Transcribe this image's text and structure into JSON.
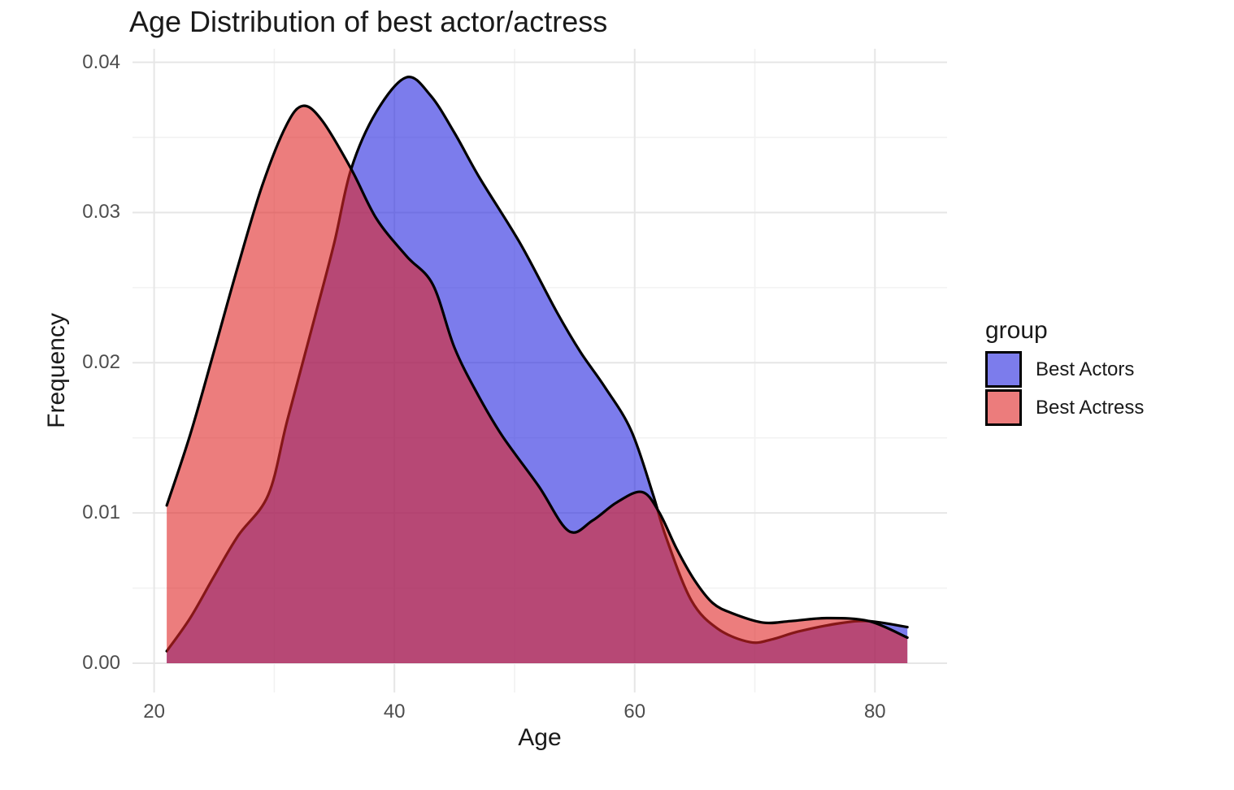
{
  "chart_data": {
    "type": "area",
    "subtype": "density",
    "title": "Age Distribution of best actor/actress",
    "xlabel": "Age",
    "ylabel": "Frequency",
    "xlim": [
      18.2,
      86.0
    ],
    "ylim": [
      -0.00195,
      0.0409
    ],
    "x_ticks": [
      20,
      40,
      60,
      80
    ],
    "x_tick_labels": [
      "20",
      "40",
      "60",
      "80"
    ],
    "x_minor_ticks": [
      30,
      50,
      70
    ],
    "y_ticks": [
      0,
      0.01,
      0.02,
      0.03,
      0.04
    ],
    "y_tick_labels": [
      "0.00",
      "0.01",
      "0.02",
      "0.03",
      "0.04"
    ],
    "y_minor_ticks": [
      0.005,
      0.015,
      0.025,
      0.035
    ],
    "grid": true,
    "legend_title": "group",
    "legend_position": "right",
    "background_color": "#ffffff",
    "major_grid_color": "#e6e6e6",
    "minor_grid_color": "#f2f2f2",
    "outline_color": "#000000",
    "overlap_fill_visible": "#b83d85",
    "series": [
      {
        "name": "Best Actors",
        "base_color": "#2525df",
        "fill_opacity": 0.6,
        "visible_fill": "#7c7cec",
        "stroke": "#000000",
        "points": [
          [
            21.05,
            0.0008
          ],
          [
            23,
            0.003
          ],
          [
            25,
            0.0058
          ],
          [
            27,
            0.0085
          ],
          [
            29.5,
            0.0112
          ],
          [
            31.1,
            0.0162
          ],
          [
            33.4,
            0.0231
          ],
          [
            35,
            0.028
          ],
          [
            36.4,
            0.0329
          ],
          [
            38.5,
            0.0367
          ],
          [
            41,
            0.039
          ],
          [
            43,
            0.0378
          ],
          [
            45,
            0.0353
          ],
          [
            47.1,
            0.0323
          ],
          [
            50.5,
            0.0279
          ],
          [
            53.5,
            0.0234
          ],
          [
            55.5,
            0.0207
          ],
          [
            57.5,
            0.0184
          ],
          [
            59.7,
            0.0155
          ],
          [
            61.5,
            0.0113
          ],
          [
            62.6,
            0.0084
          ],
          [
            64.7,
            0.0042
          ],
          [
            66.9,
            0.0023
          ],
          [
            69.6,
            0.0014
          ],
          [
            71.5,
            0.0016
          ],
          [
            73.6,
            0.0021
          ],
          [
            77,
            0.00265
          ],
          [
            79.5,
            0.0028
          ],
          [
            82.7,
            0.0024
          ]
        ]
      },
      {
        "name": "Best Actress",
        "base_color": "#e02626",
        "fill_opacity": 0.6,
        "visible_fill": "#ec7c7c",
        "stroke": "#000000",
        "points": [
          [
            21.05,
            0.0105
          ],
          [
            23,
            0.0152
          ],
          [
            25,
            0.0208
          ],
          [
            27,
            0.0265
          ],
          [
            29,
            0.0318
          ],
          [
            31,
            0.0358
          ],
          [
            32.4,
            0.0371
          ],
          [
            34,
            0.0361
          ],
          [
            36.4,
            0.0329
          ],
          [
            38.5,
            0.0296
          ],
          [
            41,
            0.0271
          ],
          [
            43.2,
            0.0252
          ],
          [
            45,
            0.021
          ],
          [
            47,
            0.0178
          ],
          [
            49,
            0.0151
          ],
          [
            52,
            0.0118
          ],
          [
            54.5,
            0.0088
          ],
          [
            56.5,
            0.0095
          ],
          [
            58.5,
            0.0107
          ],
          [
            60.6,
            0.0114
          ],
          [
            62,
            0.0101
          ],
          [
            63.5,
            0.0076
          ],
          [
            65,
            0.0055
          ],
          [
            66.5,
            0.004
          ],
          [
            68.2,
            0.0033
          ],
          [
            70.7,
            0.0027
          ],
          [
            73,
            0.0028
          ],
          [
            76,
            0.003
          ],
          [
            79.5,
            0.0028
          ],
          [
            82.7,
            0.0017
          ]
        ]
      }
    ]
  }
}
